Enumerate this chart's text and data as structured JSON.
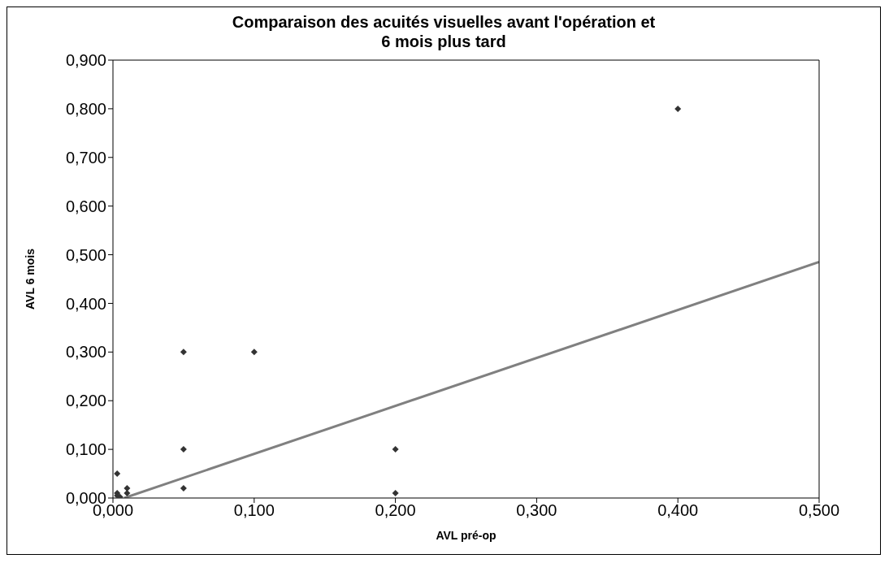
{
  "chart_data": {
    "type": "scatter",
    "title": "Comparaison des acuités visuelles avant l'opération et\n6 mois plus tard",
    "xlabel": "AVL pré-op",
    "ylabel": "AVL 6 mois",
    "xlim": [
      0,
      0.5
    ],
    "xticks": [
      {
        "value": 0,
        "label": "0,000"
      },
      {
        "value": 0.1,
        "label": "0,100"
      },
      {
        "value": 0.2,
        "label": "0,200"
      },
      {
        "value": 0.3,
        "label": "0,300"
      },
      {
        "value": 0.4,
        "label": "0,400"
      },
      {
        "value": 0.5,
        "label": "0,500"
      }
    ],
    "ylim": [
      0,
      0.9
    ],
    "yticks": [
      {
        "value": 0,
        "label": "0,000"
      },
      {
        "value": 0.1,
        "label": "0,100"
      },
      {
        "value": 0.2,
        "label": "0,200"
      },
      {
        "value": 0.3,
        "label": "0,300"
      },
      {
        "value": 0.4,
        "label": "0,400"
      },
      {
        "value": 0.5,
        "label": "0,500"
      },
      {
        "value": 0.6,
        "label": "0,600"
      },
      {
        "value": 0.7,
        "label": "0,700"
      },
      {
        "value": 0.8,
        "label": "0,800"
      },
      {
        "value": 0.9,
        "label": "0,900"
      }
    ],
    "grid": false,
    "legend": false,
    "marker": "diamond",
    "series": [
      {
        "type": "scatter",
        "color": "#333333",
        "x": [
          0.003,
          0.003,
          0.003,
          0.005,
          0.01,
          0.01,
          0.05,
          0.05,
          0.05,
          0.1,
          0.2,
          0.2,
          0.4
        ],
        "values": [
          0.05,
          0.01,
          0.005,
          0.002,
          0.02,
          0.01,
          0.3,
          0.1,
          0.02,
          0.3,
          0.1,
          0.01,
          0.8
        ]
      },
      {
        "type": "line",
        "color": "#808080",
        "x": [
          0.008,
          0.5
        ],
        "values": [
          0,
          0.485
        ],
        "marker": "none",
        "line_style": "solid"
      }
    ]
  }
}
